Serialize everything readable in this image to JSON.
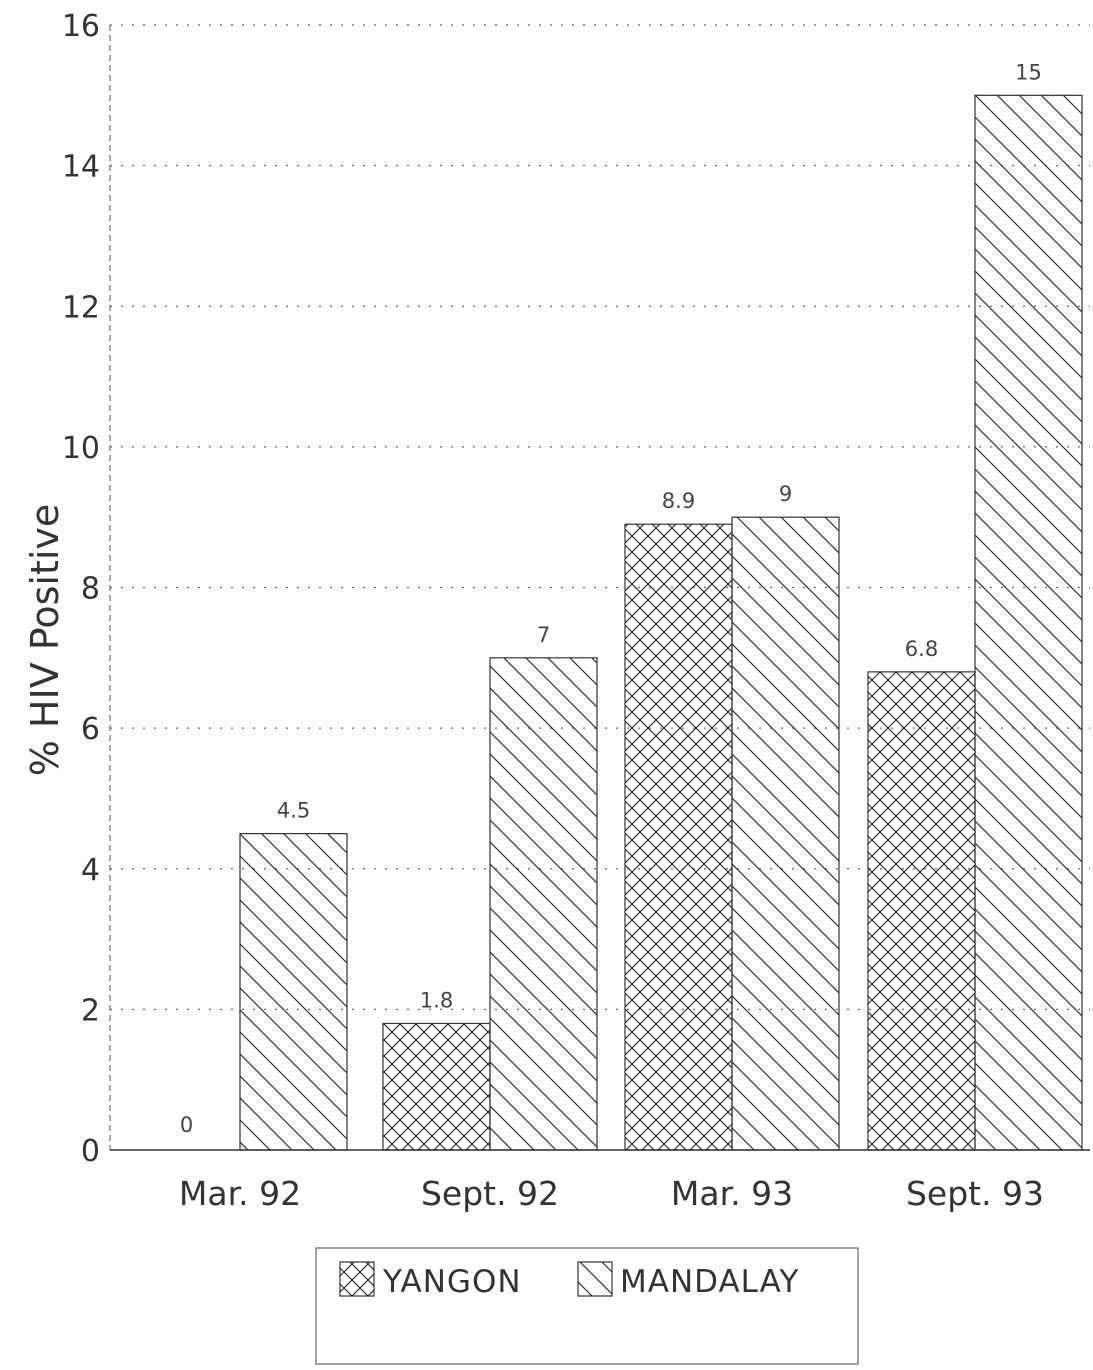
{
  "chart_data": {
    "type": "bar",
    "title": "",
    "xlabel": "",
    "ylabel": "% HIV Positive",
    "ylim": [
      0,
      16
    ],
    "yticks": [
      0,
      2,
      4,
      6,
      8,
      10,
      12,
      14,
      16
    ],
    "grid": "horizontal dotted",
    "legend_position": "bottom-center",
    "categories": [
      "Mar. 92",
      "Sept. 92",
      "Mar. 93",
      "Sept. 93"
    ],
    "series": [
      {
        "name": "YANGON",
        "pattern": "crosshatch",
        "values": [
          0,
          1.8,
          8.9,
          6.8
        ],
        "labels": [
          "0",
          "1.8",
          "8.9",
          "6.8"
        ]
      },
      {
        "name": "MANDALAY",
        "pattern": "diagonal-hatch",
        "values": [
          4.5,
          7,
          9,
          15
        ],
        "labels": [
          "4.5",
          "7",
          "9",
          "15"
        ]
      }
    ],
    "colors": {
      "ink": "#333333",
      "grid": "#666666",
      "background": "#ffffff"
    }
  }
}
